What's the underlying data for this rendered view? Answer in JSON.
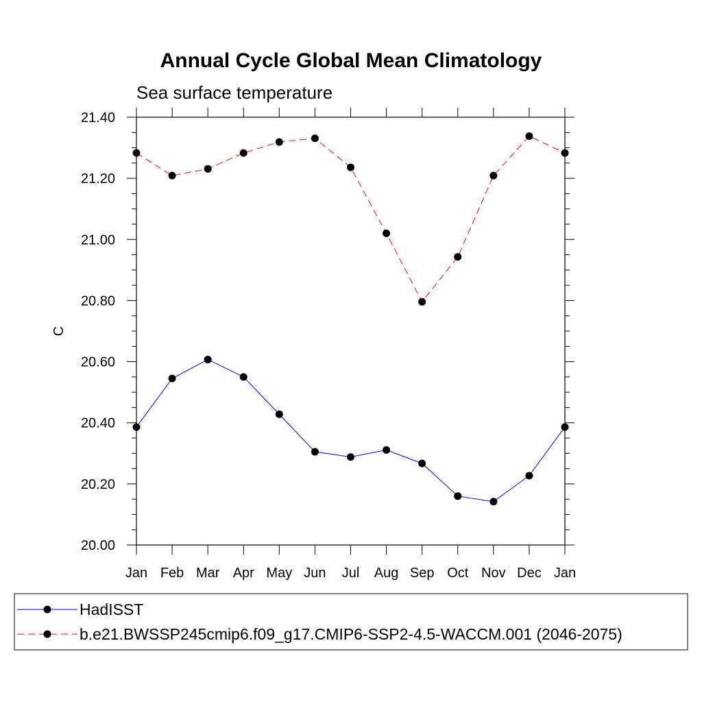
{
  "chart_data": {
    "type": "line",
    "title": "Annual Cycle Global Mean Climatology",
    "subtitle": "Sea surface temperature",
    "xlabel": "",
    "ylabel": "C",
    "ylim": [
      20.0,
      21.4
    ],
    "yticks": [
      "20.00",
      "20.20",
      "20.40",
      "20.60",
      "20.80",
      "21.00",
      "21.20",
      "21.40"
    ],
    "categories": [
      "Jan",
      "Feb",
      "Mar",
      "Apr",
      "May",
      "Jun",
      "Jul",
      "Aug",
      "Sep",
      "Oct",
      "Nov",
      "Dec",
      "Jan"
    ],
    "series": [
      {
        "name": "HadISST",
        "color": "#0000ff",
        "dash": "solid",
        "values": [
          20.386,
          20.545,
          20.607,
          20.55,
          20.428,
          20.305,
          20.288,
          20.311,
          20.267,
          20.16,
          20.142,
          20.227,
          20.386
        ]
      },
      {
        "name": "b.e21.BWSSP245cmip6.f09_g17.CMIP6-SSP2-4.5-WACCM.001 (2046-2075)",
        "color": "#ff0000",
        "dash": "dashed",
        "values": [
          21.283,
          21.209,
          21.231,
          21.283,
          21.319,
          21.331,
          21.236,
          21.02,
          20.796,
          20.943,
          21.209,
          21.338,
          21.283
        ]
      }
    ],
    "legend_position": "bottom"
  }
}
